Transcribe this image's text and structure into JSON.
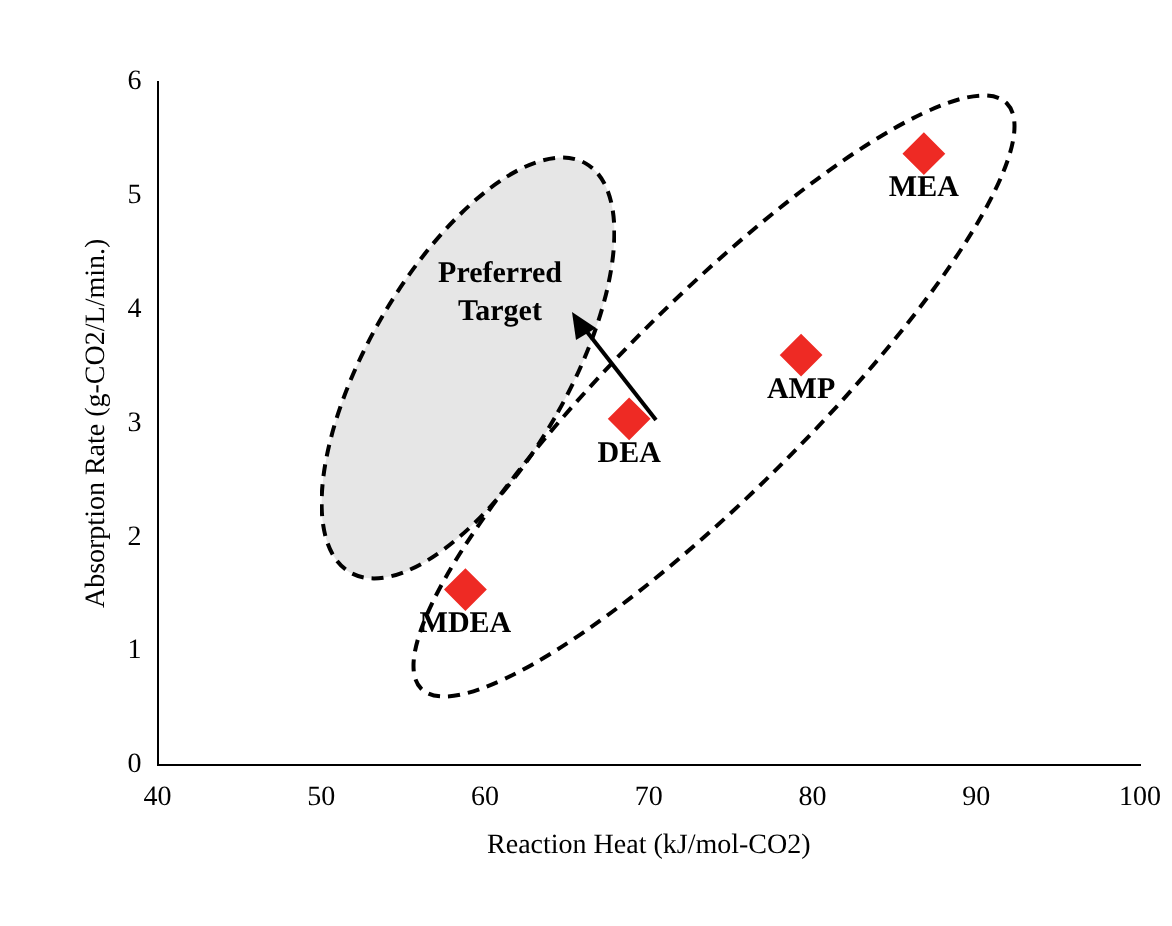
{
  "chart_data": {
    "type": "scatter",
    "xlabel": "Reaction Heat (kJ/mol-CO2)",
    "ylabel": "Absorption Rate (g-CO2/L/min.)",
    "xlim": [
      40,
      100
    ],
    "xticks": [
      40,
      50,
      60,
      70,
      80,
      90,
      100
    ],
    "ylim": [
      0,
      6
    ],
    "yticks": [
      0,
      1,
      2,
      3,
      4,
      5,
      6
    ],
    "grid": false,
    "marker": "diamond",
    "series": [
      {
        "color": "#ee2a24",
        "x": [
          86.8,
          79.3,
          68.8,
          58.8
        ],
        "values": [
          5.37,
          3.6,
          3.04,
          1.54
        ]
      }
    ],
    "annotations": [
      {
        "text": "MEA",
        "x": 86.8,
        "y": 5.37
      },
      {
        "text": "AMP",
        "x": 79.3,
        "y": 3.6
      },
      {
        "text": "DEA",
        "x": 68.8,
        "y": 3.04
      },
      {
        "text": "MDEA",
        "x": 58.8,
        "y": 1.54
      },
      "Preferred Target"
    ]
  }
}
